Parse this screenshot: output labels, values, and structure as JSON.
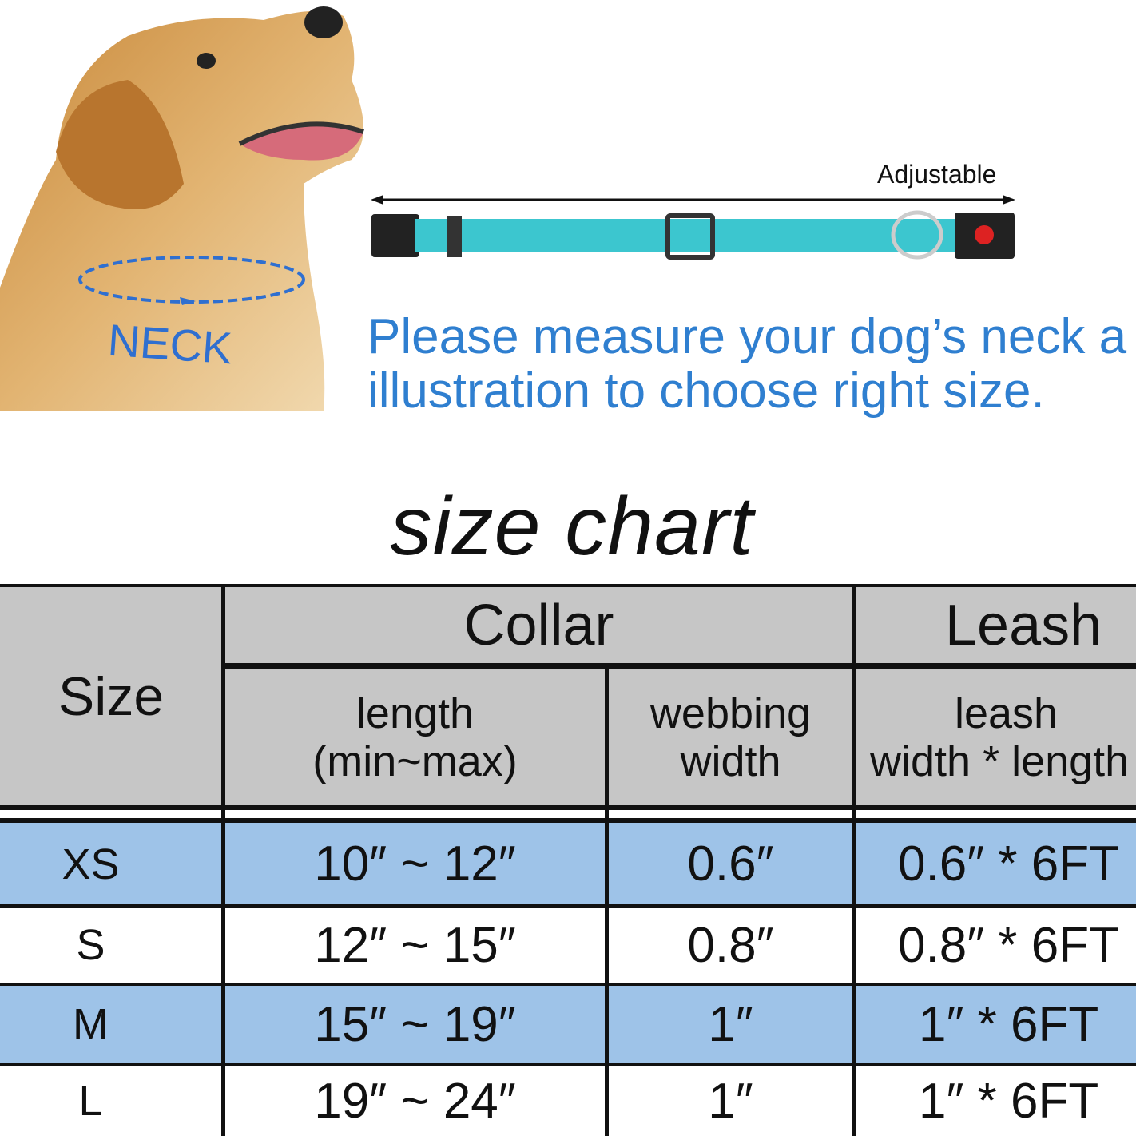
{
  "illustration": {
    "neck_label": "NECK",
    "adjustable_label": "Adjustable",
    "collar_color": "#3cc6cf"
  },
  "instructions": {
    "line1": "Please measure your dog’s neck a",
    "line2": "illustration to choose right size.",
    "color": "#2f7fd0"
  },
  "title": "size chart",
  "table": {
    "size_header": "Size",
    "collar_header": "Collar",
    "leash_header": "Leash",
    "length_line1": "length",
    "length_line2": "(min~max)",
    "webbing_line1": "webbing",
    "webbing_line2": "width",
    "leash_line1": "leash",
    "leash_line2": "width * length",
    "rows": [
      {
        "size": "XS",
        "length": "10″  ~ 12″",
        "webbing": "0.6″",
        "leash": "0.6″  * 6FT"
      },
      {
        "size": "S",
        "length": "12″  ~ 15″",
        "webbing": "0.8″",
        "leash": "0.8″  * 6FT"
      },
      {
        "size": "M",
        "length": "15″  ~ 19″",
        "webbing": "1″",
        "leash": "1″  * 6FT"
      },
      {
        "size": "L",
        "length": "19″  ~ 24″",
        "webbing": "1″",
        "leash": "1″  * 6FT"
      }
    ],
    "colors": {
      "header": "#c6c6c6",
      "highlight_row": "#9ec3e8"
    }
  }
}
